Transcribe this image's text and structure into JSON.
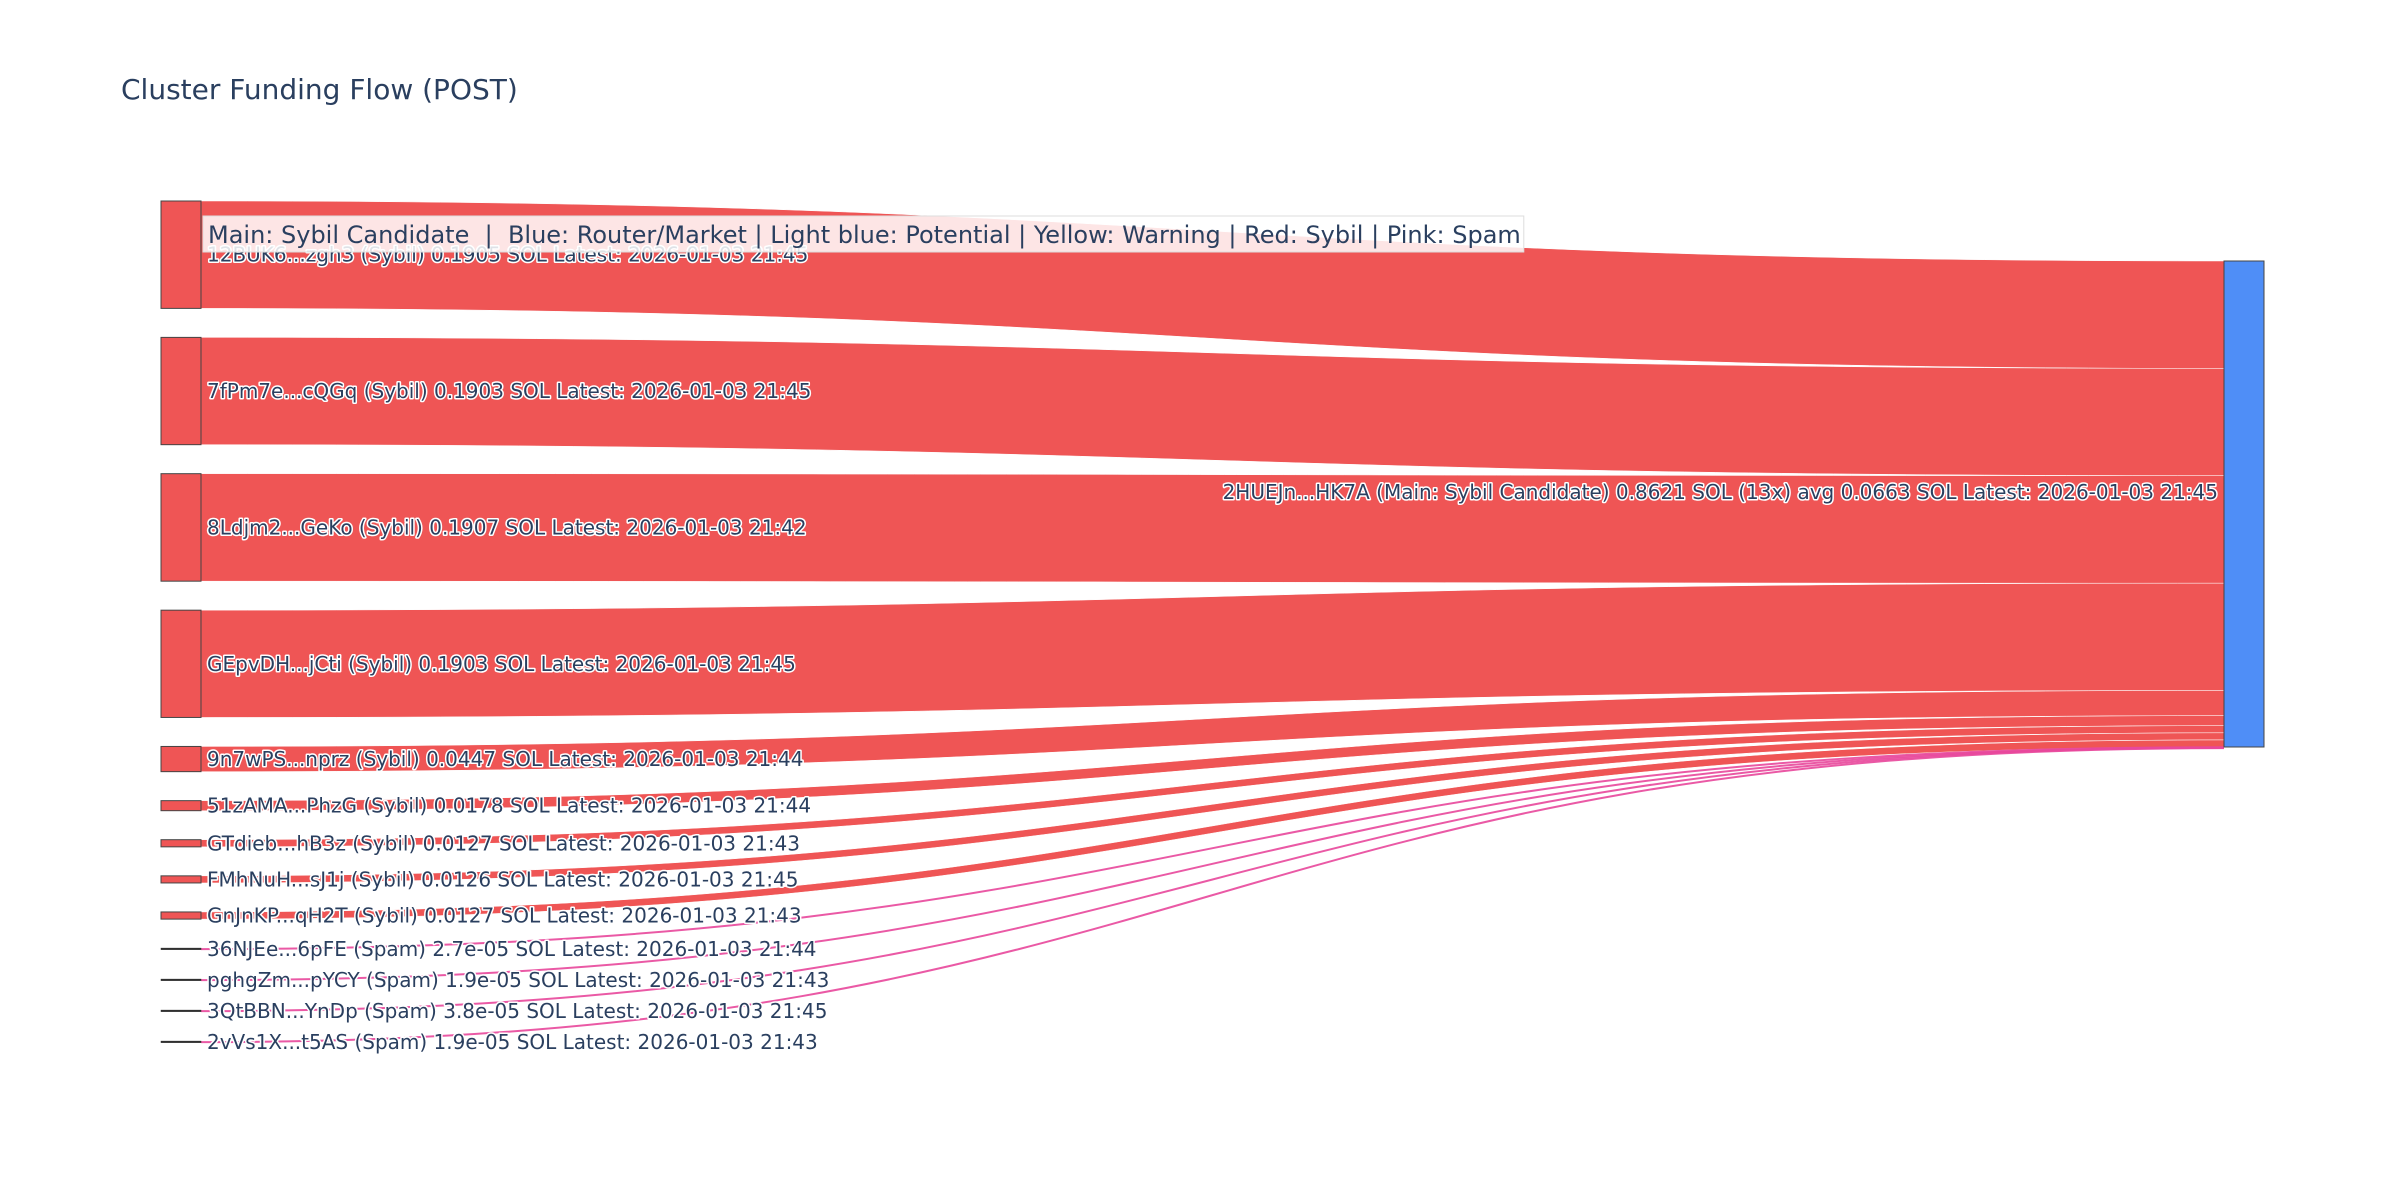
{
  "chart_data": {
    "type": "sankey",
    "title": "Cluster Funding Flow (POST)",
    "legend_text": "Main: Sybil Candidate  |  Blue: Router/Market | Light blue: Potential | Yellow: Warning | Red: Sybil | Pink: Spam",
    "colors": {
      "sybil": "#ef5555",
      "spam": "#e8479b",
      "main": "#4f8ef7",
      "spam_node": "#2a2a2a",
      "label": "#2a3f5f"
    },
    "target": {
      "name": "2HUEJn...HK7A",
      "label": "2HUEJn...HK7A (Main: Sybil Candidate) 0.8621 SOL (13x) avg 0.0663 SOL Latest: 2026-01-03 21:45",
      "total": 0.8621
    },
    "sources": [
      {
        "name": "12BUK6...zgh3",
        "category": "Sybil",
        "value": 0.1905,
        "label": "12BUK6...zgh3 (Sybil) 0.1905 SOL Latest: 2026-01-03 21:45"
      },
      {
        "name": "7fPm7e...cQGq",
        "category": "Sybil",
        "value": 0.1903,
        "label": "7fPm7e...cQGq (Sybil) 0.1903 SOL Latest: 2026-01-03 21:45"
      },
      {
        "name": "8Ldjm2...GeKo",
        "category": "Sybil",
        "value": 0.1907,
        "label": "8Ldjm2...GeKo (Sybil) 0.1907 SOL Latest: 2026-01-03 21:42"
      },
      {
        "name": "GEpvDH...jCti",
        "category": "Sybil",
        "value": 0.1903,
        "label": "GEpvDH...jCti (Sybil) 0.1903 SOL Latest: 2026-01-03 21:45"
      },
      {
        "name": "9n7wPS...nprz",
        "category": "Sybil",
        "value": 0.0447,
        "label": "9n7wPS...nprz (Sybil) 0.0447 SOL Latest: 2026-01-03 21:44"
      },
      {
        "name": "51zAMA...PhzG",
        "category": "Sybil",
        "value": 0.0178,
        "label": "51zAMA...PhzG (Sybil) 0.0178 SOL Latest: 2026-01-03 21:44"
      },
      {
        "name": "GTdieb...hB3z",
        "category": "Sybil",
        "value": 0.0127,
        "label": "GTdieb...hB3z (Sybil) 0.0127 SOL Latest: 2026-01-03 21:43"
      },
      {
        "name": "FMhNuH...sJ1j",
        "category": "Sybil",
        "value": 0.0126,
        "label": "FMhNuH...sJ1j (Sybil) 0.0126 SOL Latest: 2026-01-03 21:45"
      },
      {
        "name": "GnJnKP...qH2T",
        "category": "Sybil",
        "value": 0.0127,
        "label": "GnJnKP...qH2T (Sybil) 0.0127 SOL Latest: 2026-01-03 21:43"
      },
      {
        "name": "36NJEe...6pFE",
        "category": "Spam",
        "value": 2.7e-05,
        "label": "36NJEe...6pFE (Spam) 2.7e-05 SOL Latest: 2026-01-03 21:44"
      },
      {
        "name": "pghgZm...pYCY",
        "category": "Spam",
        "value": 1.9e-05,
        "label": "pghgZm...pYCY (Spam) 1.9e-05 SOL Latest: 2026-01-03 21:43"
      },
      {
        "name": "3QtBBN...YnDp",
        "category": "Spam",
        "value": 3.8e-05,
        "label": "3QtBBN...YnDp (Spam) 3.8e-05 SOL Latest: 2026-01-03 21:45"
      },
      {
        "name": "2vVs1X...t5AS",
        "category": "Spam",
        "value": 1.9e-05,
        "label": "2vVs1X...t5AS (Spam) 1.9e-05 SOL Latest: 2026-01-03 21:43"
      }
    ]
  }
}
